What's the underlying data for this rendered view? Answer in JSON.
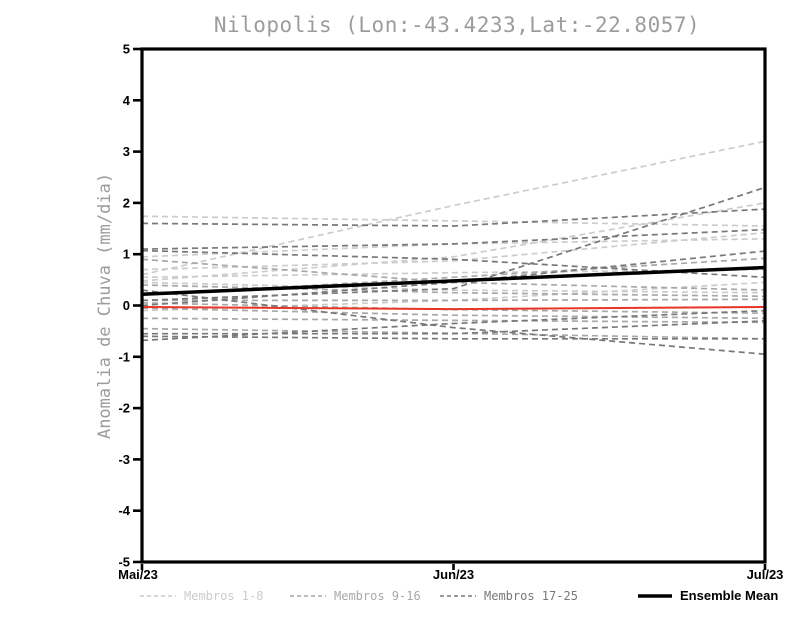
{
  "chart_data": {
    "type": "line",
    "title": "Nilopolis (Lon:-43.4233,Lat:-22.8057)",
    "ylabel": "Anomalia de Chuva (mm/dia)",
    "xlabel": "",
    "x_categories": [
      "Mai/23",
      "Jun/23",
      "Jul/23"
    ],
    "ylim": [
      -5,
      5
    ],
    "yticks": [
      5,
      4,
      3,
      2,
      1,
      0,
      -1,
      -2,
      -3,
      -4,
      -5
    ],
    "grid": false,
    "legend_position": "bottom",
    "colors": {
      "group_1_8": "#cccccc",
      "group_9_16": "#a8a8a8",
      "group_17_25": "#787878",
      "ensemble_mean": "#000000",
      "zero_line": "#e8352a",
      "axis": "#000000",
      "title_text": "#9c9c9c",
      "tick_text": "#000000"
    },
    "legend": [
      {
        "label": "Membros 1-8",
        "group": "group_1_8",
        "style": "dashed"
      },
      {
        "label": "Membros 9-16",
        "group": "group_9_16",
        "style": "dashed"
      },
      {
        "label": "Membros 17-25",
        "group": "group_17_25",
        "style": "dashed"
      },
      {
        "label": "Ensemble Mean",
        "group": "ensemble_mean",
        "style": "solid"
      }
    ],
    "series": [
      {
        "name": "member-1",
        "group": "group_1_8",
        "style": "dashed",
        "values": [
          1.74,
          1.65,
          1.55
        ]
      },
      {
        "name": "member-2",
        "group": "group_1_8",
        "style": "dashed",
        "values": [
          0.6,
          1.95,
          3.2
        ]
      },
      {
        "name": "member-3",
        "group": "group_1_8",
        "style": "dashed",
        "values": [
          0.95,
          1.2,
          1.3
        ]
      },
      {
        "name": "member-4",
        "group": "group_1_8",
        "style": "dashed",
        "values": [
          0.7,
          0.87,
          1.42
        ]
      },
      {
        "name": "member-5",
        "group": "group_1_8",
        "style": "dashed",
        "values": [
          0.55,
          0.64,
          0.7
        ]
      },
      {
        "name": "member-6",
        "group": "group_1_8",
        "style": "dashed",
        "values": [
          0.48,
          0.95,
          2.0
        ]
      },
      {
        "name": "member-7",
        "group": "group_1_8",
        "style": "dashed",
        "values": [
          0.45,
          0.3,
          0.25
        ]
      },
      {
        "name": "member-8",
        "group": "group_1_8",
        "style": "dashed",
        "values": [
          -0.1,
          0.1,
          0.45
        ]
      },
      {
        "name": "member-9",
        "group": "group_9_16",
        "style": "dashed",
        "values": [
          0.4,
          0.25,
          0.18
        ]
      },
      {
        "name": "member-10",
        "group": "group_9_16",
        "style": "dashed",
        "values": [
          0.1,
          0.1,
          0.12
        ]
      },
      {
        "name": "member-11",
        "group": "group_9_16",
        "style": "dashed",
        "values": [
          0.05,
          -0.08,
          -0.15
        ]
      },
      {
        "name": "member-12",
        "group": "group_9_16",
        "style": "dashed",
        "values": [
          -0.05,
          -0.19,
          -0.25
        ]
      },
      {
        "name": "member-13",
        "group": "group_9_16",
        "style": "dashed",
        "values": [
          -0.25,
          -0.29,
          -0.33
        ]
      },
      {
        "name": "member-14",
        "group": "group_9_16",
        "style": "dashed",
        "values": [
          -0.45,
          -0.54,
          -0.65
        ]
      },
      {
        "name": "member-15",
        "group": "group_9_16",
        "style": "dashed",
        "values": [
          0.2,
          0.55,
          0.92
        ]
      },
      {
        "name": "member-16",
        "group": "group_9_16",
        "style": "dashed",
        "values": [
          0.9,
          0.45,
          0.3
        ]
      },
      {
        "name": "member-17",
        "group": "group_17_25",
        "style": "dashed",
        "values": [
          1.6,
          1.55,
          1.88
        ]
      },
      {
        "name": "member-18",
        "group": "group_17_25",
        "style": "dashed",
        "values": [
          1.1,
          1.2,
          1.48
        ]
      },
      {
        "name": "member-19",
        "group": "group_17_25",
        "style": "dashed",
        "values": [
          0.1,
          0.33,
          2.3
        ]
      },
      {
        "name": "member-20",
        "group": "group_17_25",
        "style": "dashed",
        "values": [
          0.0,
          0.45,
          1.06
        ]
      },
      {
        "name": "member-21",
        "group": "group_17_25",
        "style": "dashed",
        "values": [
          0.3,
          -0.43,
          -0.95
        ]
      },
      {
        "name": "member-22",
        "group": "group_17_25",
        "style": "dashed",
        "values": [
          -0.55,
          -0.55,
          -0.3
        ]
      },
      {
        "name": "member-23",
        "group": "group_17_25",
        "style": "dashed",
        "values": [
          -0.6,
          -0.65,
          -0.65
        ]
      },
      {
        "name": "member-24",
        "group": "group_17_25",
        "style": "dashed",
        "values": [
          -0.68,
          -0.35,
          -0.1
        ]
      },
      {
        "name": "member-25",
        "group": "group_17_25",
        "style": "dashed",
        "values": [
          1.07,
          0.9,
          0.55
        ]
      }
    ],
    "ensemble_mean": {
      "name": "ensemble-mean",
      "group": "ensemble_mean",
      "style": "solid",
      "values": [
        0.22,
        0.48,
        0.74
      ]
    },
    "zero_line": {
      "name": "zero-line",
      "group": "zero_line",
      "style": "solid",
      "values": [
        -0.03,
        -0.07,
        -0.03
      ]
    }
  }
}
